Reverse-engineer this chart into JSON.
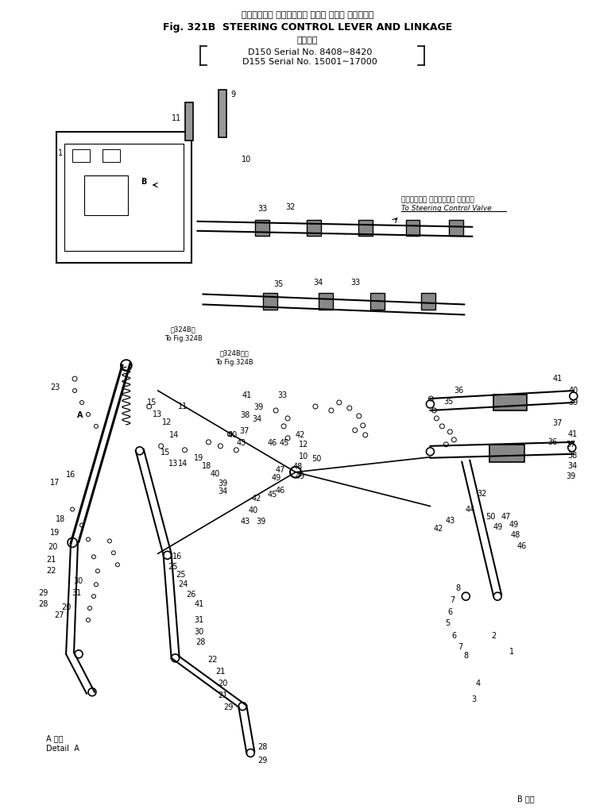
{
  "title_japanese": "ステアリング コントロール レバー および リンケージ",
  "title_english": "Fig. 321B  STEERING CONTROL LEVER AND LINKAGE",
  "subtitle_japanese": "適用号機",
  "subtitle_line1": "D150 Serial No. 8408８8420",
  "subtitle_line2": "D155 Serial No. 15001８17000",
  "annotation_japanese": "ステアリング コントロール バルブへ",
  "annotation_english": "To Steering Control Valve",
  "detail_a_japanese": "A 詳細",
  "detail_a_english": "Detail  A",
  "detail_b_japanese": "B 詳細",
  "bg_color": "#ffffff",
  "line_color": "#000000",
  "fig_width": 7.74,
  "fig_height": 10.19,
  "dpi": 100
}
